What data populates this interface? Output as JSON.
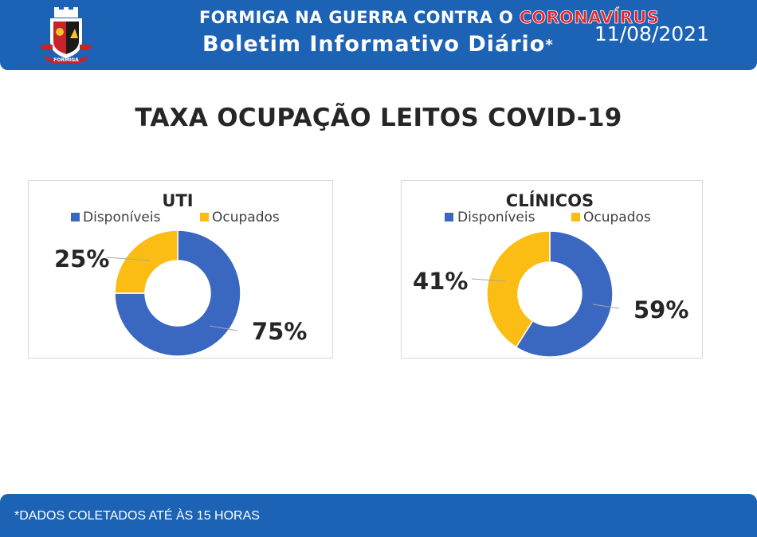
{
  "header": {
    "line1_prefix": "FORMIGA NA GUERRA CONTRA O ",
    "line1_highlight": "CORONAVÍRUS",
    "line2": "Boletim Informativo Diário",
    "line2_mark": "*",
    "date": "11/08/2021",
    "crest_label": "FORMIGA",
    "crest_icon": "city-coat-of-arms-icon"
  },
  "page_title": "TAXA OCUPAÇÃO LEITOS COVID-19",
  "colors": {
    "header_blue": "#1d63b5",
    "disponiveis": "#3a67c0",
    "ocupados": "#fbbd14",
    "highlight_red": "#e8232a"
  },
  "chart_data": [
    {
      "id": "uti",
      "type": "pie",
      "variant": "donut",
      "title": "UTI",
      "legend_position": "top",
      "categories": [
        "Disponíveis",
        "Ocupados"
      ],
      "values": [
        75,
        25
      ],
      "labels": [
        "75%",
        "25%"
      ]
    },
    {
      "id": "cli",
      "type": "pie",
      "variant": "donut",
      "title": "CLÍNICOS",
      "legend_position": "top",
      "categories": [
        "Disponíveis",
        "Ocupados"
      ],
      "values": [
        59,
        41
      ],
      "labels": [
        "59%",
        "41%"
      ]
    }
  ],
  "footer": {
    "note": "*DADOS COLETADOS ATÉ ÀS 15 HORAS"
  }
}
